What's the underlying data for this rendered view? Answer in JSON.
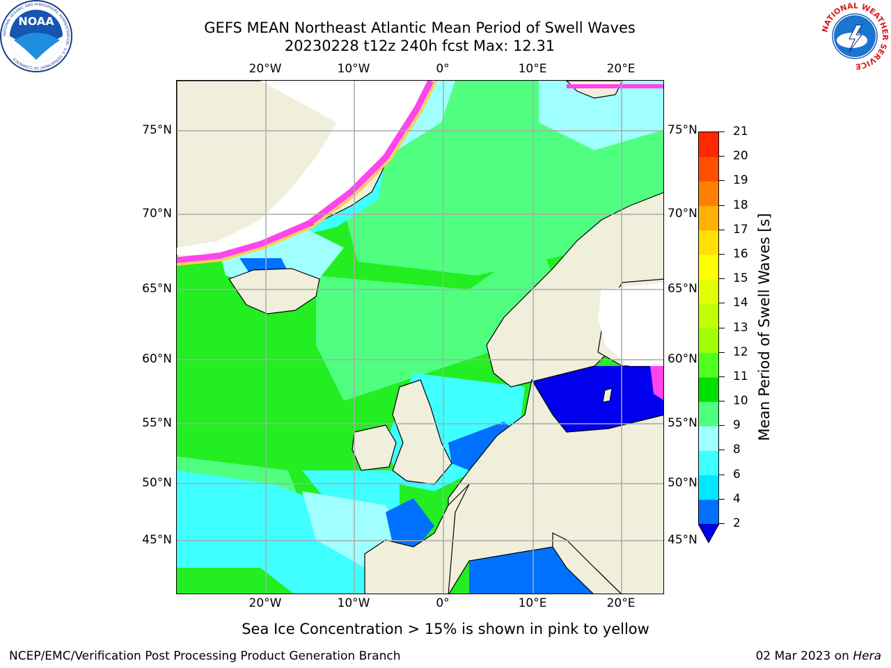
{
  "title_line1": "GEFS MEAN Northeast Atlantic Mean Period of Swell Waves",
  "title_line2": "20230228 t12z 240h fcst   Max: 12.31",
  "axes": {
    "lon_labels": [
      "20°W",
      "10°W",
      "0°",
      "10°E",
      "20°E"
    ],
    "lat_labels": [
      "75°N",
      "70°N",
      "65°N",
      "60°N",
      "55°N",
      "50°N",
      "45°N"
    ]
  },
  "colorbar": {
    "title": "Mean Period of Swell Waves [s]",
    "ticks": [
      "2",
      "4",
      "6",
      "8",
      "9",
      "10",
      "11",
      "12",
      "13",
      "14",
      "15",
      "16",
      "17",
      "18",
      "19",
      "20",
      "21"
    ],
    "colors": [
      "#0070ff",
      "#00e8ff",
      "#40ffff",
      "#a0ffff",
      "#50ff80",
      "#00e000",
      "#50ff20",
      "#a0ff00",
      "#c0ff00",
      "#e0ff00",
      "#ffff00",
      "#ffe000",
      "#ffb000",
      "#ff8000",
      "#ff5000",
      "#ff2800",
      "#ff0000"
    ],
    "under_color": "#0000ee"
  },
  "logos": {
    "left": {
      "name": "NOAA",
      "ring_text": "NATIONAL OCEANIC AND ATMOSPHERIC ADMINISTRATION · U.S. DEPARTMENT OF COMMERCE"
    },
    "right": {
      "ring_text": "NATIONAL WEATHER SERVICE"
    }
  },
  "note": "Sea Ice Concentration > 15% is shown in pink to yellow",
  "footer_left": "NCEP/EMC/Verification Post Processing Product Generation Branch",
  "footer_right_date": "02 Mar 2023 on",
  "footer_right_host": "Hera",
  "map_colors": {
    "ocean_green": "#22ee22",
    "ocean_light": "#50ff80",
    "ocean_cyan": "#40ffff",
    "ocean_pale": "#a0ffff",
    "ocean_blue": "#0070ff",
    "deep_blue": "#0000ee",
    "land": "#efefdc",
    "ice": "#ff44ee",
    "ice_edge": "#ffcc55",
    "grid": "#aaaaaa"
  }
}
